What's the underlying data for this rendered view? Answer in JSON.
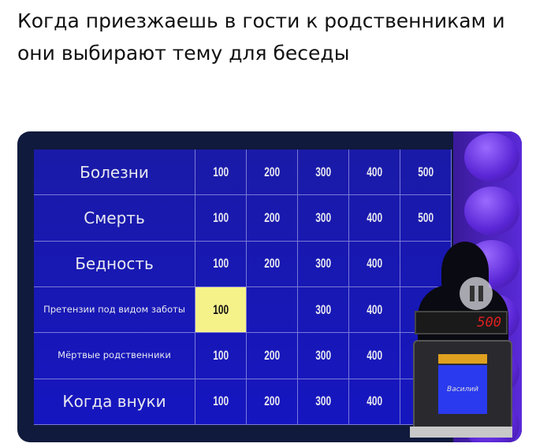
{
  "caption": "Когда приезжаешь в гости к родственникам и они выбирают тему для беседы",
  "board": {
    "rows": [
      {
        "category": "Болезни",
        "values": [
          "100",
          "200",
          "300",
          "400",
          "500"
        ]
      },
      {
        "category": "Смерть",
        "values": [
          "100",
          "200",
          "300",
          "400",
          "500"
        ]
      },
      {
        "category": "Бедность",
        "values": [
          "100",
          "200",
          "300",
          "400",
          ""
        ]
      },
      {
        "category": "Претензии под видом заботы",
        "values": [
          "100",
          "",
          "300",
          "400",
          ""
        ],
        "highlighted_value": "100"
      },
      {
        "category": "Мёртвые родственники",
        "values": [
          "100",
          "200",
          "300",
          "400",
          ""
        ]
      },
      {
        "category": "Когда внуки",
        "values": [
          "100",
          "200",
          "300",
          "400",
          ""
        ]
      }
    ],
    "highlight_color": "#f6f28a",
    "board_color": "#1a1aa8"
  },
  "player": {
    "score": "500",
    "name": "Василий"
  },
  "controls": {
    "pause_icon": "pause-icon"
  }
}
